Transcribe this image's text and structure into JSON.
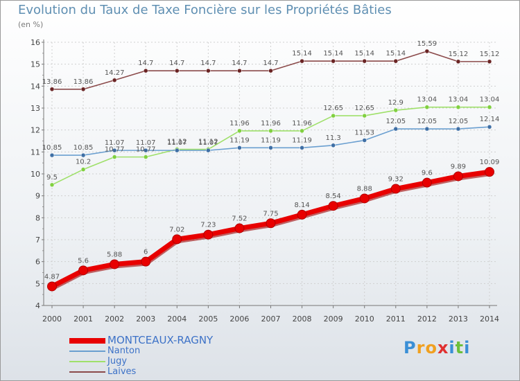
{
  "chart_data": {
    "type": "line",
    "title": "Evolution du Taux de Taxe Foncière sur les Propriétés Bâties",
    "subtitle": "(en %)",
    "ylim": [
      4,
      16
    ],
    "y_ticks": [
      "4",
      "5",
      "6",
      "7",
      "8",
      "9",
      "10",
      "11",
      "12",
      "13",
      "14",
      "15",
      "16"
    ],
    "grid": true,
    "categories": [
      "2000",
      "2001",
      "2002",
      "2003",
      "2004",
      "2005",
      "2006",
      "2007",
      "2008",
      "2009",
      "2010",
      "2011",
      "2012",
      "2013",
      "2014"
    ],
    "series": [
      {
        "name": "MONTCEAUX-RAGNY",
        "color": "#e80000",
        "style": "thick",
        "values": [
          4.87,
          5.6,
          5.88,
          6,
          7.02,
          7.23,
          7.52,
          7.75,
          8.14,
          8.54,
          8.88,
          9.32,
          9.6,
          9.89,
          10.09
        ],
        "labels": [
          "4.87",
          "5.6",
          "5.88",
          "6",
          "7.02",
          "7.23",
          "7.52",
          "7.75",
          "8.14",
          "8.54",
          "8.88",
          "9.32",
          "9.6",
          "9.89",
          "10.09"
        ]
      },
      {
        "name": "Nanton",
        "color": "#6a9fd0",
        "marker": "#3f6fa5",
        "style": "thin",
        "values": [
          10.85,
          10.85,
          11.07,
          11.07,
          11.07,
          11.07,
          11.19,
          11.19,
          11.19,
          11.3,
          11.53,
          12.05,
          12.05,
          12.05,
          12.14
        ],
        "labels": [
          "10.85",
          "10.85",
          "11.07",
          "11.07",
          "11.07",
          "11.07",
          "11.19",
          "11.19",
          "11.19",
          "11.3",
          "11.53",
          "12.05",
          "12.05",
          "12.05",
          "12.14"
        ]
      },
      {
        "name": "Jugy",
        "color": "#9fe06a",
        "marker": "#80d040",
        "style": "thin",
        "values": [
          9.5,
          10.2,
          10.77,
          10.77,
          11.12,
          11.12,
          11.96,
          11.96,
          11.96,
          12.65,
          12.65,
          12.9,
          13.04,
          13.04,
          13.04
        ],
        "labels": [
          "9.5",
          "10.2",
          "10.77",
          "10.77",
          "11.12",
          "11.12",
          "11.96",
          "11.96",
          "11.96",
          "12.65",
          "12.65",
          "12.9",
          "13.04",
          "13.04",
          "13.04"
        ]
      },
      {
        "name": "Laives",
        "color": "#8b4a4a",
        "marker": "#6a2424",
        "style": "thin",
        "values": [
          13.86,
          13.86,
          14.27,
          14.7,
          14.7,
          14.7,
          14.7,
          14.7,
          15.14,
          15.14,
          15.14,
          15.14,
          15.59,
          15.12,
          15.12
        ],
        "labels": [
          "13.86",
          "13.86",
          "14.27",
          "14.7",
          "14.7",
          "14.7",
          "14.7",
          "14.7",
          "15.14",
          "15.14",
          "15.14",
          "15.14",
          "15.59",
          "15.12",
          "15.12"
        ]
      }
    ]
  },
  "legend": {
    "items": [
      {
        "name": "MONTCEAUX-RAGNY",
        "color": "#e80000"
      },
      {
        "name": "Nanton",
        "color": "#6a9fd0"
      },
      {
        "name": "Jugy",
        "color": "#9fe06a"
      },
      {
        "name": "Laives",
        "color": "#8b4a4a"
      }
    ]
  },
  "brand": {
    "letters": [
      "P",
      "r",
      "o",
      "x",
      "i",
      "t",
      "i"
    ],
    "colors": [
      "#3a8fd6",
      "#f0a020",
      "#f0a020",
      "#e03030",
      "#3a8fd6",
      "#6cbf3a",
      "#3a8fd6"
    ]
  }
}
